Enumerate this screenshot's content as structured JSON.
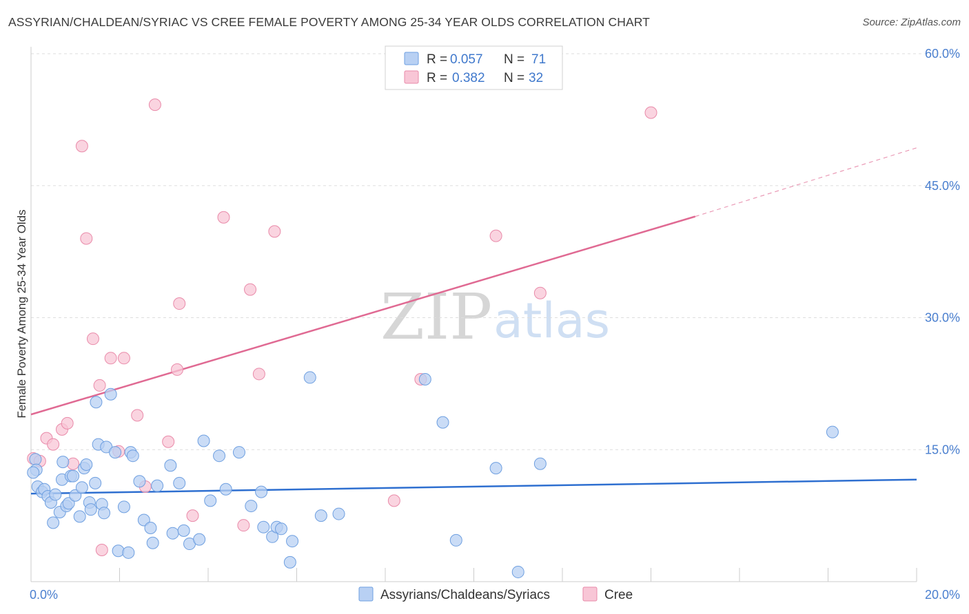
{
  "title": "ASSYRIAN/CHALDEAN/SYRIAC VS CREE FEMALE POVERTY AMONG 25-34 YEAR OLDS CORRELATION CHART",
  "source": "Source: ZipAtlas.com",
  "watermark": {
    "zip": "ZIP",
    "atlas": "atlas"
  },
  "colors": {
    "blue_fill": "#b8d0f3",
    "blue_stroke": "#6e9fe0",
    "blue_line": "#2e6fd0",
    "pink_fill": "#f8c6d6",
    "pink_stroke": "#e98aa9",
    "pink_line": "#e06a93",
    "grid": "#dddddd",
    "axis_text": "#4a7fcf"
  },
  "legend": {
    "r_label": "R =",
    "n_label": "N =",
    "series": [
      {
        "r": "0.057",
        "n": "71"
      },
      {
        "r": "0.382",
        "n": "32"
      }
    ]
  },
  "chart_data": {
    "type": "scatter",
    "title": "ASSYRIAN/CHALDEAN/SYRIAC VS CREE FEMALE POVERTY AMONG 25-34 YEAR OLDS CORRELATION CHART",
    "xlabel": "",
    "ylabel": "Female Poverty Among 25-34 Year Olds",
    "xlim": [
      0,
      20
    ],
    "ylim": [
      0,
      60
    ],
    "x_tick_labels": [
      "0.0%",
      "20.0%"
    ],
    "y_ticks": [
      15,
      30,
      45,
      60
    ],
    "y_tick_labels": [
      "15.0%",
      "30.0%",
      "45.0%",
      "60.0%"
    ],
    "series": [
      {
        "name": "Assyrians/Chaldeans/Syriacs",
        "r": 0.057,
        "n": 71,
        "trend": {
          "x": [
            0,
            20
          ],
          "y": [
            10.0,
            11.6
          ]
        },
        "points": [
          [
            0.1,
            13.9
          ],
          [
            0.12,
            12.7
          ],
          [
            0.15,
            10.8
          ],
          [
            0.25,
            10.2
          ],
          [
            0.3,
            10.5
          ],
          [
            0.38,
            9.7
          ],
          [
            0.45,
            9.0
          ],
          [
            0.5,
            6.7
          ],
          [
            0.55,
            9.9
          ],
          [
            0.65,
            7.9
          ],
          [
            0.7,
            11.6
          ],
          [
            0.72,
            13.6
          ],
          [
            0.8,
            8.6
          ],
          [
            0.85,
            8.9
          ],
          [
            0.9,
            12.0
          ],
          [
            0.95,
            12.0
          ],
          [
            1.0,
            9.8
          ],
          [
            1.1,
            7.4
          ],
          [
            1.15,
            10.7
          ],
          [
            1.2,
            12.9
          ],
          [
            1.25,
            13.3
          ],
          [
            1.32,
            9.0
          ],
          [
            1.35,
            8.2
          ],
          [
            1.45,
            11.2
          ],
          [
            1.47,
            20.4
          ],
          [
            1.52,
            15.6
          ],
          [
            1.6,
            8.8
          ],
          [
            1.65,
            7.8
          ],
          [
            1.7,
            15.3
          ],
          [
            1.8,
            21.3
          ],
          [
            1.9,
            14.7
          ],
          [
            1.97,
            3.5
          ],
          [
            2.1,
            8.5
          ],
          [
            2.2,
            3.3
          ],
          [
            2.25,
            14.7
          ],
          [
            2.3,
            14.3
          ],
          [
            2.45,
            11.4
          ],
          [
            2.55,
            7.0
          ],
          [
            2.7,
            6.1
          ],
          [
            2.75,
            4.4
          ],
          [
            2.85,
            10.9
          ],
          [
            3.15,
            13.2
          ],
          [
            3.2,
            5.5
          ],
          [
            3.35,
            11.2
          ],
          [
            3.45,
            5.8
          ],
          [
            3.58,
            4.3
          ],
          [
            3.8,
            4.8
          ],
          [
            3.9,
            16.0
          ],
          [
            4.05,
            9.2
          ],
          [
            4.25,
            14.3
          ],
          [
            4.4,
            10.5
          ],
          [
            4.7,
            14.7
          ],
          [
            4.97,
            8.6
          ],
          [
            5.2,
            10.2
          ],
          [
            5.25,
            6.2
          ],
          [
            5.45,
            5.1
          ],
          [
            5.55,
            6.2
          ],
          [
            5.65,
            6.0
          ],
          [
            5.85,
            2.2
          ],
          [
            5.9,
            4.6
          ],
          [
            6.3,
            23.2
          ],
          [
            6.55,
            7.5
          ],
          [
            6.95,
            7.7
          ],
          [
            8.9,
            23.0
          ],
          [
            9.3,
            18.1
          ],
          [
            9.6,
            4.7
          ],
          [
            10.5,
            12.9
          ],
          [
            11.0,
            1.1
          ],
          [
            11.5,
            13.4
          ],
          [
            18.1,
            17.0
          ],
          [
            0.05,
            12.4
          ]
        ]
      },
      {
        "name": "Cree",
        "r": 0.382,
        "n": 32,
        "trend": {
          "x": [
            0,
            15.0
          ],
          "y": [
            19.0,
            41.5
          ]
        },
        "trend_extension": {
          "x": [
            15.0,
            20.0
          ],
          "y": [
            41.5,
            49.3
          ]
        },
        "points": [
          [
            0.05,
            14.0
          ],
          [
            0.2,
            13.7
          ],
          [
            0.35,
            16.3
          ],
          [
            0.5,
            15.6
          ],
          [
            0.7,
            17.3
          ],
          [
            0.82,
            18.0
          ],
          [
            0.95,
            13.4
          ],
          [
            1.15,
            49.5
          ],
          [
            1.25,
            39.0
          ],
          [
            1.4,
            27.6
          ],
          [
            1.55,
            22.3
          ],
          [
            1.6,
            3.6
          ],
          [
            1.8,
            25.4
          ],
          [
            1.98,
            14.8
          ],
          [
            2.1,
            25.4
          ],
          [
            2.4,
            18.9
          ],
          [
            2.58,
            10.8
          ],
          [
            2.8,
            54.2
          ],
          [
            3.1,
            15.9
          ],
          [
            3.3,
            24.1
          ],
          [
            3.35,
            31.6
          ],
          [
            3.65,
            7.5
          ],
          [
            4.35,
            41.4
          ],
          [
            4.8,
            6.4
          ],
          [
            4.95,
            33.2
          ],
          [
            5.15,
            23.6
          ],
          [
            5.5,
            39.8
          ],
          [
            8.2,
            9.2
          ],
          [
            8.8,
            23.0
          ],
          [
            10.5,
            39.3
          ],
          [
            11.5,
            32.8
          ],
          [
            14.0,
            53.3
          ]
        ]
      }
    ],
    "legend_labels": [
      "Assyrians/Chaldeans/Syriacs",
      "Cree"
    ]
  }
}
